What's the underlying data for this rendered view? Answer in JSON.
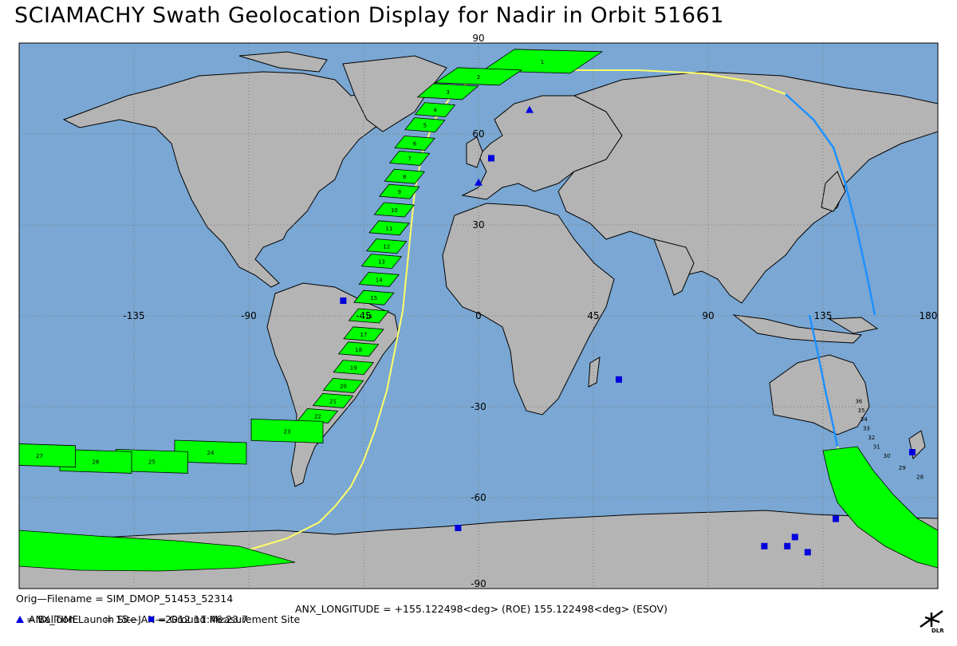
{
  "title": "SCIAMACHY Swath Geolocation Display for Nadir in Orbit 51661",
  "map": {
    "projection": "equirectangular",
    "lon_range": [
      -180,
      180
    ],
    "lat_range": [
      -90,
      90
    ],
    "ocean_color": "#7aa7d3",
    "land_color": "#b4b4b4",
    "coast_color": "#000000",
    "grid_color": "#7a7a7a",
    "swath_color": "#00ff00",
    "track_day_color": "#ffff66",
    "track_night_color": "#1e90ff",
    "site_color": "#0000dd",
    "lon_labels": [
      "-135",
      "-90",
      "-45",
      "0",
      "45",
      "90",
      "135",
      "180"
    ],
    "lat_labels": [
      "90",
      "60",
      "30",
      "-30",
      "-60",
      "-90"
    ]
  },
  "swath": [
    {
      "id": "1",
      "lon": 25,
      "lat": 84
    },
    {
      "id": "2",
      "lon": 0,
      "lat": 79
    },
    {
      "id": "3",
      "lon": -12,
      "lat": 74
    },
    {
      "id": "4",
      "lon": -17,
      "lat": 68
    },
    {
      "id": "5",
      "lon": -21,
      "lat": 63
    },
    {
      "id": "6",
      "lon": -25,
      "lat": 57
    },
    {
      "id": "7",
      "lon": -27,
      "lat": 52
    },
    {
      "id": "8",
      "lon": -29,
      "lat": 46
    },
    {
      "id": "9",
      "lon": -31,
      "lat": 41
    },
    {
      "id": "10",
      "lon": -33,
      "lat": 35
    },
    {
      "id": "11",
      "lon": -35,
      "lat": 29
    },
    {
      "id": "12",
      "lon": -36,
      "lat": 23
    },
    {
      "id": "13",
      "lon": -38,
      "lat": 18
    },
    {
      "id": "14",
      "lon": -39,
      "lat": 12
    },
    {
      "id": "15",
      "lon": -41,
      "lat": 6
    },
    {
      "id": "16",
      "lon": -43,
      "lat": 0
    },
    {
      "id": "17",
      "lon": -45,
      "lat": -6
    },
    {
      "id": "18",
      "lon": -47,
      "lat": -11
    },
    {
      "id": "19",
      "lon": -49,
      "lat": -17
    },
    {
      "id": "20",
      "lon": -53,
      "lat": -23
    },
    {
      "id": "21",
      "lon": -57,
      "lat": -28
    },
    {
      "id": "22",
      "lon": -63,
      "lat": -33
    },
    {
      "id": "23",
      "lon": -75,
      "lat": -38
    },
    {
      "id": "24",
      "lon": -105,
      "lat": -45
    },
    {
      "id": "25",
      "lon": -128,
      "lat": -48
    },
    {
      "id": "26",
      "lon": -150,
      "lat": -48
    },
    {
      "id": "27",
      "lon": -172,
      "lat": -46
    }
  ],
  "swath_labels_extra": [
    {
      "id": "28",
      "lon": 173,
      "lat": -53
    },
    {
      "id": "29",
      "lon": 166,
      "lat": -50
    },
    {
      "id": "30",
      "lon": 160,
      "lat": -46
    },
    {
      "id": "31",
      "lon": 156,
      "lat": -43
    },
    {
      "id": "32",
      "lon": 154,
      "lat": -40
    },
    {
      "id": "33",
      "lon": 152,
      "lat": -37
    },
    {
      "id": "34",
      "lon": 151,
      "lat": -34
    },
    {
      "id": "35",
      "lon": 150,
      "lat": -31
    },
    {
      "id": "36",
      "lon": 149,
      "lat": -28
    }
  ],
  "balloon_sites": [
    {
      "lon": 20,
      "lat": 68
    },
    {
      "lon": 0,
      "lat": 44
    }
  ],
  "ground_sites": [
    {
      "lon": 5,
      "lat": 52
    },
    {
      "lon": -53,
      "lat": 5
    },
    {
      "lon": 55,
      "lat": -21
    },
    {
      "lon": -8,
      "lat": -70
    },
    {
      "lon": 170,
      "lat": -45
    },
    {
      "lon": 112,
      "lat": -76
    },
    {
      "lon": 121,
      "lat": -76
    },
    {
      "lon": 124,
      "lat": -73
    },
    {
      "lon": 129,
      "lat": -78
    },
    {
      "lon": 140,
      "lat": -67
    }
  ],
  "footer": {
    "filename": "Orig—Filename = SIM_DMOP_51453_52314",
    "anx_time": "ANX_TIME        = 15—JAN—2012 11:46:23.7",
    "anx_longitude": "ANX_LONGITUDE = +155.122498<deg> (ROE) 155.122498<deg> (ESOV)",
    "legend_balloon": "= Balloon Launch Site",
    "legend_ground": "= Ground Measurement Site"
  },
  "logo_text": "DLR"
}
